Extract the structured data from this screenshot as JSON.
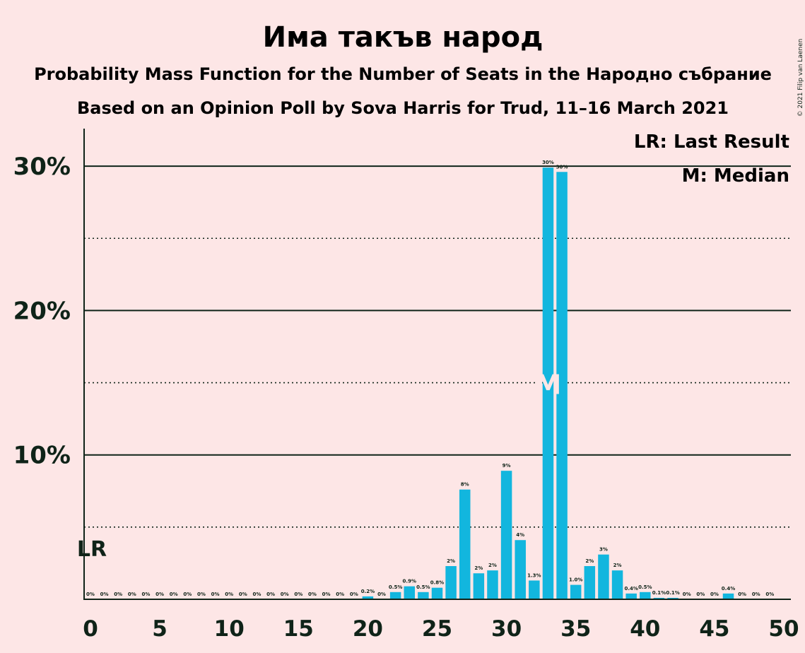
{
  "title": "Има такъв народ",
  "subtitle1": "Probability Mass Function for the Number of Seats in the Народно събрание",
  "subtitle2": "Based on an Opinion Poll by Sova Harris for Trud, 11–16 March 2021",
  "copyright": "© 2021 Filip van Laenen",
  "legend": {
    "lr": "LR: Last Result",
    "median": "M: Median"
  },
  "last_result_label": "LR",
  "median_label": "M",
  "colors": {
    "background": "#fde6e6",
    "bar": "#12b6de",
    "axis": "#0f2318"
  },
  "chart_data": {
    "type": "bar",
    "x": [
      0,
      1,
      2,
      3,
      4,
      5,
      6,
      7,
      8,
      9,
      10,
      11,
      12,
      13,
      14,
      15,
      16,
      17,
      18,
      19,
      20,
      21,
      22,
      23,
      24,
      25,
      26,
      27,
      28,
      29,
      30,
      31,
      32,
      33,
      34,
      35,
      36,
      37,
      38,
      39,
      40,
      41,
      42,
      43,
      44,
      45,
      46,
      47,
      48,
      49,
      50
    ],
    "values": [
      0,
      0,
      0,
      0,
      0,
      0,
      0,
      0,
      0,
      0,
      0,
      0,
      0,
      0,
      0,
      0,
      0,
      0,
      0,
      0,
      0.2,
      0,
      0.5,
      0.9,
      0.5,
      0.8,
      2.3,
      7.6,
      1.8,
      2.0,
      8.9,
      4.1,
      1.3,
      29.9,
      29.6,
      1.0,
      2.3,
      3.1,
      2.0,
      0.4,
      0.5,
      0.1,
      0.1,
      0,
      0,
      0,
      0.4,
      0,
      0,
      0,
      0
    ],
    "labels": [
      "0%",
      "0%",
      "0%",
      "0%",
      "0%",
      "0%",
      "0%",
      "0%",
      "0%",
      "0%",
      "0%",
      "0%",
      "0%",
      "0%",
      "0%",
      "0%",
      "0%",
      "0%",
      "0%",
      "0%",
      "0.2%",
      "0%",
      "0.5%",
      "0.9%",
      "0.5%",
      "0.8%",
      "2%",
      "8%",
      "2%",
      "2%",
      "9%",
      "4%",
      "1.3%",
      "30%",
      "30%",
      "1.0%",
      "2%",
      "3%",
      "2%",
      "0.4%",
      "0.5%",
      "0.1%",
      "0.1%",
      "0%",
      "0%",
      "0%",
      "0.4%",
      "0%",
      "0%",
      "0%",
      ""
    ],
    "xticks": [
      0,
      5,
      10,
      15,
      20,
      25,
      30,
      35,
      40,
      45,
      50
    ],
    "yticks": [
      10,
      20,
      30
    ],
    "ytick_labels": [
      "10%",
      "20%",
      "30%"
    ],
    "minor_gridlines": [
      5,
      15,
      25
    ],
    "ylim": [
      0,
      32.5
    ],
    "xlim": [
      -0.5,
      50.5
    ],
    "last_result_x": 0,
    "median_x": 33,
    "legend_position": "top-right"
  }
}
